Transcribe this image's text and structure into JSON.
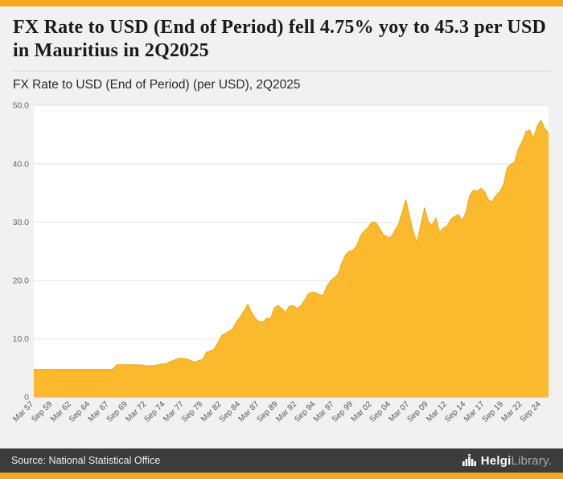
{
  "accent": {
    "bar_color": "#f5a81c"
  },
  "header": {
    "title": "FX Rate to USD (End of Period) fell 4.75% yoy to 45.3 per USD in Mauritius in 2Q2025",
    "subtitle": "FX Rate to USD (End of Period) (per USD), 2Q2025"
  },
  "footer": {
    "source": "Source: National Statistical Office",
    "brand_bold": "Helgi",
    "brand_light": "Library."
  },
  "chart_data": {
    "type": "area",
    "title": "FX Rate to USD (End of Period) (per USD), 2Q2025",
    "region": "Mauritius",
    "period": "2Q2025",
    "last_value": 45.3,
    "ylim": [
      0,
      50
    ],
    "yticks": [
      0,
      10,
      20,
      30,
      40,
      50
    ],
    "ytick_labels": [
      "0",
      "10.0",
      "20.0",
      "30.0",
      "40.0",
      "50.0"
    ],
    "tick_every": 5,
    "x_tick_labels": [
      "Mar 57",
      "Sep 59",
      "Mar 62",
      "Sep 64",
      "Mar 67",
      "Sep 69",
      "Mar 72",
      "Sep 74",
      "Mar 77",
      "Sep 79",
      "Mar 82",
      "Sep 84",
      "Mar 87",
      "Sep 89",
      "Mar 92",
      "Sep 94",
      "Mar 97",
      "Sep 99",
      "Mar 02",
      "Sep 04",
      "Mar 07",
      "Sep 09",
      "Mar 12",
      "Sep 14",
      "Mar 17",
      "Sep 19",
      "Mar 22",
      "Sep 24"
    ],
    "x_frequency": "semiannual (Mar/Sep), Mar 1957 - 2Q 2025",
    "values": [
      4.76,
      4.76,
      4.76,
      4.76,
      4.76,
      4.76,
      4.76,
      4.76,
      4.76,
      4.76,
      4.76,
      4.76,
      4.76,
      4.76,
      4.76,
      4.76,
      4.76,
      4.76,
      4.76,
      4.76,
      4.76,
      4.76,
      5.56,
      5.56,
      5.56,
      5.56,
      5.56,
      5.56,
      5.56,
      5.53,
      5.34,
      5.44,
      5.44,
      5.53,
      5.7,
      5.7,
      6.02,
      6.27,
      6.53,
      6.68,
      6.63,
      6.52,
      6.16,
      6.02,
      6.31,
      6.5,
      7.72,
      7.9,
      8.24,
      9.3,
      10.55,
      10.9,
      11.3,
      11.71,
      13.0,
      13.8,
      14.9,
      15.9,
      14.5,
      13.47,
      12.95,
      12.88,
      13.5,
      13.44,
      15.3,
      15.74,
      15.2,
      14.5,
      15.6,
      15.73,
      15.2,
      15.6,
      16.5,
      17.65,
      18.0,
      17.94,
      17.6,
      17.39,
      19.0,
      19.92,
      20.5,
      21.06,
      23.0,
      24.41,
      25.0,
      25.19,
      26.0,
      27.7,
      28.5,
      29.1,
      30.0,
      29.95,
      29.0,
      27.9,
      27.5,
      27.3,
      28.5,
      29.5,
      31.5,
      33.9,
      31.0,
      28.3,
      26.5,
      29.5,
      32.5,
      30.0,
      29.5,
      30.7,
      28.2,
      29.0,
      29.3,
      30.5,
      31.0,
      31.3,
      30.3,
      31.6,
      34.5,
      35.5,
      35.3,
      35.8,
      35.2,
      33.8,
      33.5,
      34.6,
      35.2,
      36.4,
      39.3,
      39.9,
      40.3,
      42.6,
      43.8,
      45.5,
      45.8,
      44.3,
      46.5,
      47.5,
      46.0,
      45.3
    ],
    "fill_color": "#fbb92e",
    "line_color": "#f2a50c",
    "grid": true,
    "grid_color": "#e2e2e2",
    "plot_background": "#ffffff"
  }
}
